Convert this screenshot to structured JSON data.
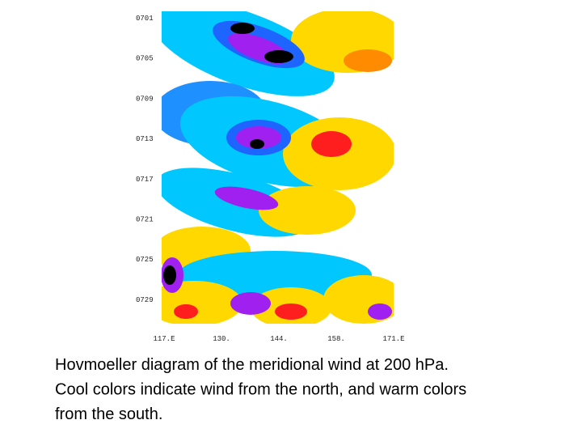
{
  "figure": {
    "y_labels": [
      "0701",
      "0705",
      "0709",
      "0713",
      "0717",
      "0721",
      "0725",
      "0729"
    ],
    "x_labels": [
      "117.E",
      "130.",
      "144.",
      "158.",
      "171.E"
    ]
  },
  "caption": {
    "lines": [
      "Hovmoeller diagram of the meridional wind at 200 hPa.",
      "Cool colors indicate wind from the north, and warm colors",
      "from the south."
    ]
  }
}
